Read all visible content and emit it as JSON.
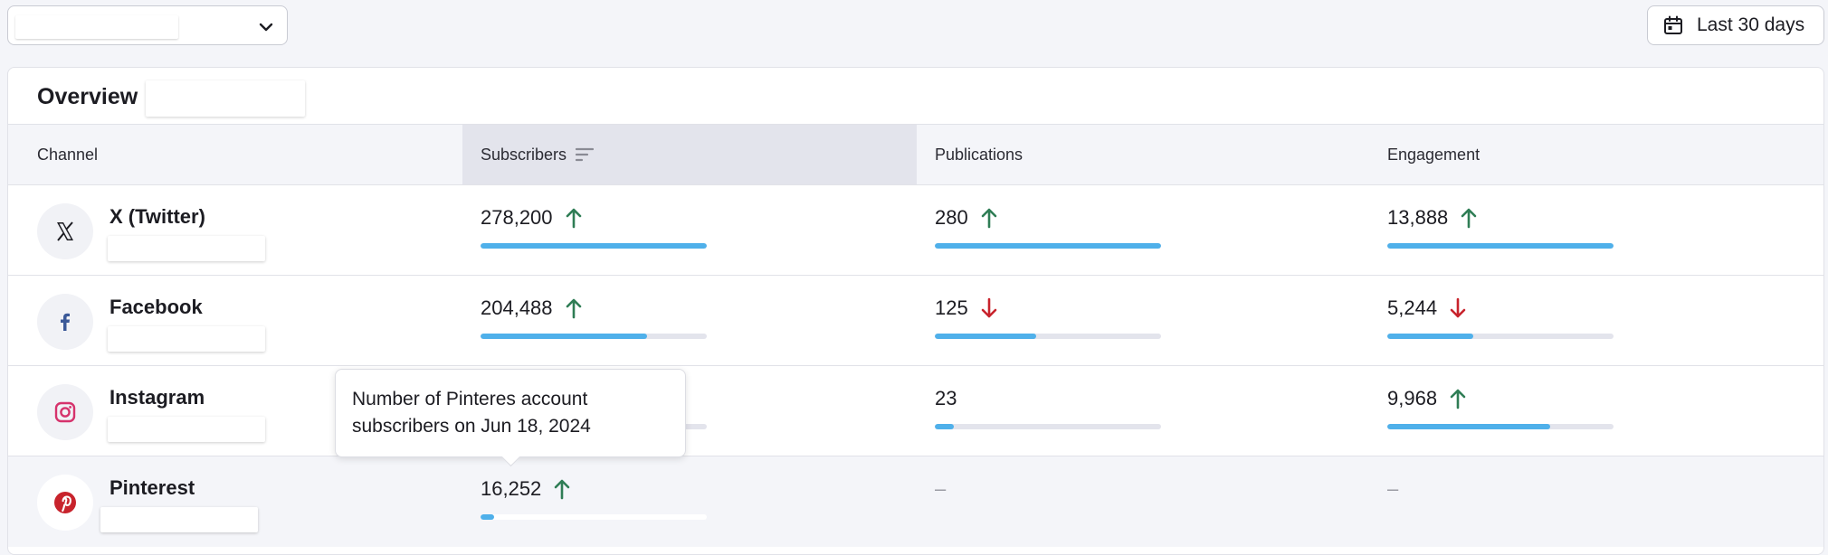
{
  "header": {
    "selector_value": "",
    "date_range_label": "Last 30 days"
  },
  "overview": {
    "title": "Overview",
    "columns": [
      "Channel",
      "Subscribers",
      "Publications",
      "Engagement"
    ],
    "sorted_column": "Subscribers",
    "rows": [
      {
        "channel": "X (Twitter)",
        "icon": "x-twitter-icon",
        "subscribers": {
          "value": "278,200",
          "trend": "up",
          "bar": 1.0
        },
        "publications": {
          "value": "280",
          "trend": "up",
          "bar": 1.0
        },
        "engagement": {
          "value": "13,888",
          "trend": "up",
          "bar": 1.0
        }
      },
      {
        "channel": "Facebook",
        "icon": "facebook-icon",
        "subscribers": {
          "value": "204,488",
          "trend": "up",
          "bar": 0.735
        },
        "publications": {
          "value": "125",
          "trend": "down",
          "bar": 0.446
        },
        "engagement": {
          "value": "5,244",
          "trend": "down",
          "bar": 0.378
        }
      },
      {
        "channel": "Instagram",
        "icon": "instagram-icon",
        "subscribers": {
          "value": "",
          "trend": "",
          "bar": 0.2
        },
        "publications": {
          "value": "23",
          "trend": "",
          "bar": 0.082
        },
        "engagement": {
          "value": "9,968",
          "trend": "up",
          "bar": 0.718
        }
      },
      {
        "channel": "Pinterest",
        "icon": "pinterest-icon",
        "subscribers": {
          "value": "16,252",
          "trend": "up",
          "bar": 0.058
        },
        "publications": {
          "value": "–",
          "trend": "",
          "bar": null
        },
        "engagement": {
          "value": "–",
          "trend": "",
          "bar": null
        }
      }
    ]
  },
  "tooltip": {
    "text": "Number of Pinteres account subscribers on Jun 18, 2024"
  },
  "colors": {
    "bar_fill": "#4fb0ea",
    "bar_track": "#e3e4ec",
    "trend_up": "#2f7d55",
    "trend_down": "#c8232c",
    "facebook": "#3b5998",
    "instagram": "#d6336c",
    "pinterest": "#c8232c"
  }
}
